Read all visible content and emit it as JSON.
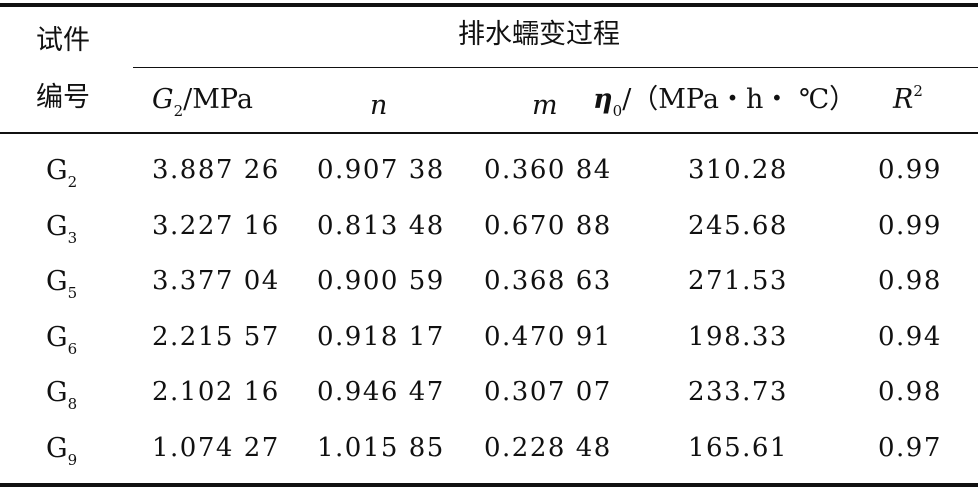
{
  "header": {
    "specimen_label": "试件",
    "number_label": "编号",
    "group_title": "排水蠕变过程",
    "columns": {
      "g2_symbol": "G",
      "g2_sub": "2",
      "g2_unit": "/MPa",
      "n": "n",
      "m": "m",
      "eta_symbol": "η",
      "eta_sub": "0",
      "eta_unit": "/（MPa・h・ ℃）",
      "r2_symbol": "R",
      "r2_sup": "2"
    }
  },
  "rows": [
    {
      "id": "G",
      "sub": "2",
      "g2": "3.887 26",
      "n": "0.907 38",
      "m": "0.360 84",
      "eta": "310.28",
      "r2": "0.99"
    },
    {
      "id": "G",
      "sub": "3",
      "g2": "3.227 16",
      "n": "0.813 48",
      "m": "0.670 88",
      "eta": "245.68",
      "r2": "0.99"
    },
    {
      "id": "G",
      "sub": "5",
      "g2": "3.377 04",
      "n": "0.900 59",
      "m": "0.368 63",
      "eta": "271.53",
      "r2": "0.98"
    },
    {
      "id": "G",
      "sub": "6",
      "g2": "2.215 57",
      "n": "0.918 17",
      "m": "0.470 91",
      "eta": "198.33",
      "r2": "0.94"
    },
    {
      "id": "G",
      "sub": "8",
      "g2": "2.102 16",
      "n": "0.946 47",
      "m": "0.307 07",
      "eta": "233.73",
      "r2": "0.98"
    },
    {
      "id": "G",
      "sub": "9",
      "g2": "1.074 27",
      "n": "1.015 85",
      "m": "0.228 48",
      "eta": "165.61",
      "r2": "0.97"
    }
  ]
}
